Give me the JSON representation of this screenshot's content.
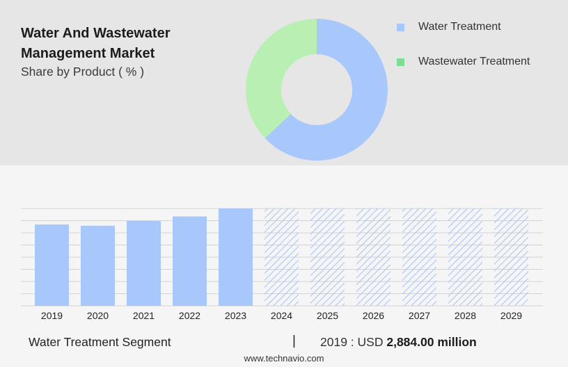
{
  "header": {
    "title": "Water And Wastewater Management Market",
    "subtitle": "Share by Product ( % )"
  },
  "colors": {
    "water": "#a8c8fb",
    "wastewater": "#b8f0b4",
    "wastewater_legend": "#7ddc96",
    "hatch": "#aac6f5"
  },
  "chart_data": [
    {
      "type": "pie",
      "donut": true,
      "categories": [
        "Water Treatment",
        "Wastewater Treatment"
      ],
      "values": [
        63,
        37
      ]
    },
    {
      "type": "bar",
      "categories": [
        "2019",
        "2020",
        "2021",
        "2022",
        "2023",
        "2024",
        "2025",
        "2026",
        "2027",
        "2028",
        "2029"
      ],
      "values": [
        2884,
        2840,
        3010,
        3170,
        3450,
        null,
        null,
        null,
        null,
        null,
        null
      ],
      "forecast_categories": [
        "2024",
        "2025",
        "2026",
        "2027",
        "2028",
        "2029"
      ],
      "gridlines": true
    }
  ],
  "footer": {
    "segment": "Water Treatment Segment",
    "separator": "|",
    "value_prefix": "2019 : USD",
    "value": "2,884.00 million",
    "website": "www.technavio.com"
  }
}
